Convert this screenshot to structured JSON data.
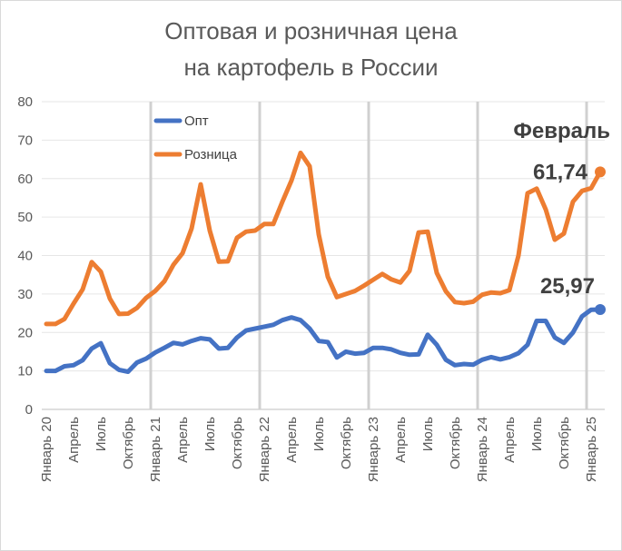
{
  "chart_data": {
    "type": "line",
    "title_line1": "Оптовая и розничная цена",
    "title_line2": "на картофель в России",
    "ylim": [
      0,
      80
    ],
    "yticks": [
      "0",
      "10",
      "20",
      "30",
      "40",
      "50",
      "60",
      "70",
      "80"
    ],
    "x_tick_labels": [
      "Январь 20",
      "Апрель",
      "Июль",
      "Октябрь",
      "Январь 21",
      "Апрель",
      "Июль",
      "Октябрь",
      "Январь 22",
      "Апрель",
      "Июль",
      "Октябрь",
      "Январь 23",
      "Апрель",
      "Июль",
      "Октябрь",
      "Январь 24",
      "Апрель",
      "Июль",
      "Октябрь",
      "Январь 25"
    ],
    "x_tick_months": [
      0,
      3,
      6,
      9,
      12,
      15,
      18,
      21,
      24,
      27,
      30,
      33,
      36,
      39,
      42,
      45,
      48,
      51,
      54,
      57,
      60
    ],
    "year_gridlines_months": [
      12,
      24,
      36,
      48,
      60
    ],
    "legend_position": "top-left",
    "series": [
      {
        "name": "Опт",
        "color": "#4472C4",
        "values": [
          10,
          10,
          11.2,
          11.5,
          12.8,
          15.8,
          17.2,
          12,
          10.3,
          9.8,
          12.2,
          13.2,
          14.8,
          16,
          17.3,
          16.9,
          17.8,
          18.5,
          18.2,
          15.8,
          16,
          18.7,
          20.5,
          21,
          21.5,
          22,
          23.2,
          23.9,
          23.2,
          21,
          17.8,
          17.5,
          13.5,
          15,
          14.5,
          14.7,
          16,
          16,
          15.6,
          14.7,
          14.2,
          14.3,
          19.4,
          16.8,
          12.9,
          11.5,
          11.8,
          11.6,
          12.9,
          13.6,
          13,
          13.6,
          14.6,
          16.8,
          23,
          23,
          18.7,
          17.3,
          20,
          24.2,
          25.9,
          25.97
        ]
      },
      {
        "name": "Розница",
        "color": "#ED7D31",
        "values": [
          22.2,
          22.2,
          23.5,
          27.5,
          31.2,
          38.3,
          35.8,
          28.8,
          24.8,
          24.9,
          26.4,
          29,
          30.8,
          33.3,
          37.6,
          40.6,
          47,
          58.5,
          46.5,
          38.4,
          38.5,
          44.6,
          46.2,
          46.5,
          48.2,
          48.2,
          54,
          59.5,
          66.7,
          63.2,
          45.5,
          34.5,
          29.2,
          30,
          30.8,
          32.2,
          33.7,
          35.2,
          33.8,
          33,
          36,
          46,
          46.2,
          35.5,
          30.7,
          27.9,
          27.6,
          28,
          29.8,
          30.4,
          30.2,
          31,
          40,
          56.2,
          57.4,
          52,
          44.1,
          45.7,
          54,
          56.8,
          57.5,
          61.74
        ]
      }
    ],
    "annotations": {
      "month_label": "Февраль",
      "retail_last": "61,74",
      "wholesale_last": "25,97"
    }
  }
}
